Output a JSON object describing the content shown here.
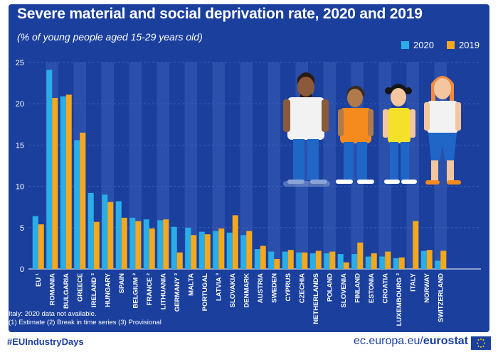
{
  "title": "Severe material and social deprivation rate, 2020 and 2019",
  "subtitle": "(% of young people aged 15-29 years old)",
  "notes": [
    "Italy: 2020 data not available.",
    "(1) Estimate (2) Break in time series (3) Provisional"
  ],
  "footer": {
    "hashtag": "#EUIndustryDays",
    "site": "ec.europa.eu/",
    "brand": "eurostat"
  },
  "colors": {
    "background": "#1a3f9d",
    "series_2020": "#29aee8",
    "series_2019": "#f5a81c",
    "grid": "#3d5fb3"
  },
  "chart_data": {
    "type": "bar",
    "ylim": [
      0,
      25
    ],
    "yticks": [
      0,
      5,
      10,
      15,
      20,
      25
    ],
    "grid": true,
    "legend": "top-right",
    "categories": [
      "EU ¹",
      "ROMANIA",
      "BULGARIA",
      "GREECE",
      "IRELAND ²",
      "HUNGARY",
      "SPAIN",
      "BELGIUM ²",
      "FRANCE ²",
      "LITHUANIA",
      "GERMANY ²",
      "MALTA",
      "PORTUGAL",
      "LATVIA ³",
      "SLOVAKIA",
      "DENMARK",
      "AUSTRIA",
      "SWEDEN",
      "CYPRUS",
      "CZECHIA",
      "NETHERLANDS",
      "POLAND",
      "SLOVENIA",
      "FINLAND",
      "ESTONIA",
      "CROATIA",
      "LUXEMBOURG ²",
      "ITALY",
      "NORWAY",
      "SWITZERLAND"
    ],
    "series": [
      {
        "name": "2020",
        "values": [
          6.4,
          24.1,
          20.9,
          15.6,
          9.2,
          9.0,
          8.2,
          6.2,
          6.0,
          5.9,
          5.1,
          5.0,
          4.5,
          4.6,
          4.4,
          4.1,
          2.4,
          2.1,
          2.1,
          2.0,
          1.9,
          1.9,
          1.8,
          1.8,
          1.5,
          1.5,
          1.3,
          null,
          2.2,
          1.0
        ]
      },
      {
        "name": "2019",
        "values": [
          5.4,
          20.7,
          21.1,
          16.5,
          5.7,
          8.1,
          6.2,
          5.8,
          4.9,
          6.0,
          2.0,
          4.1,
          4.2,
          4.9,
          6.5,
          4.6,
          2.8,
          1.2,
          2.3,
          2.0,
          2.2,
          2.1,
          0.8,
          3.2,
          1.9,
          2.1,
          1.4,
          5.8,
          2.3,
          2.2
        ]
      }
    ]
  }
}
